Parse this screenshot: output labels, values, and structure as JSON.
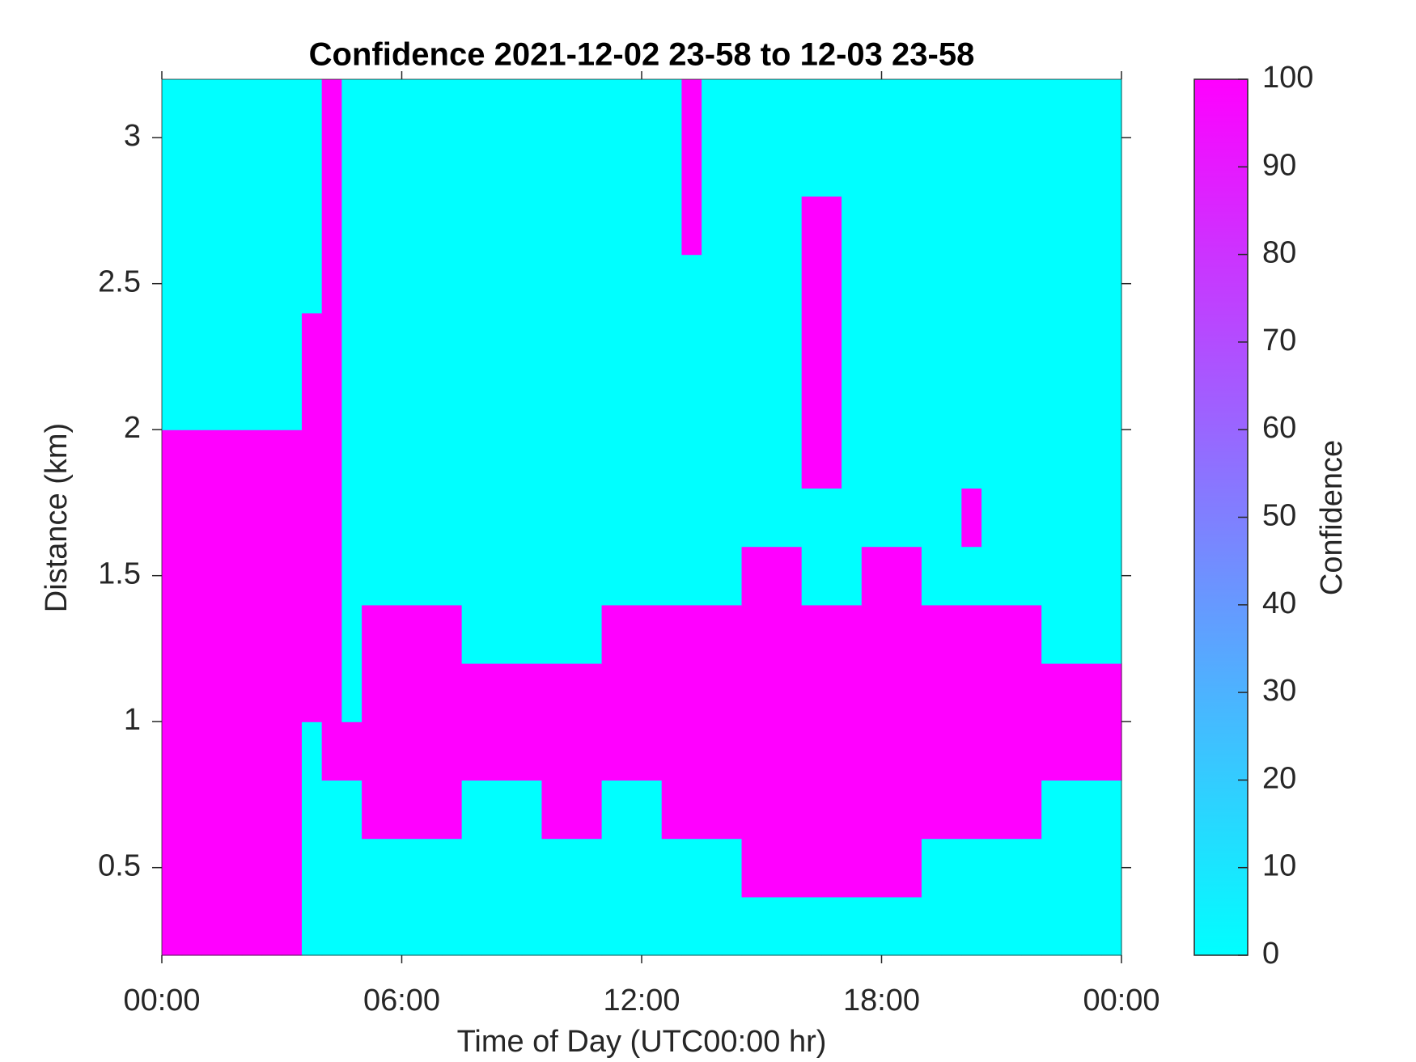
{
  "chart_data": {
    "type": "heatmap",
    "title": "Confidence 2021-12-02 23-58 to 12-03 23-58",
    "xlabel": "Time of Day (UTC00:00 hr)",
    "ylabel": "Distance (km)",
    "colorbar_label": "Confidence",
    "colormap": [
      "#00ffff",
      "#ff00ff"
    ],
    "clim": [
      0,
      100
    ],
    "cticks": [
      0,
      10,
      20,
      30,
      40,
      50,
      60,
      70,
      80,
      90,
      100
    ],
    "xlim": [
      0,
      24
    ],
    "xticks": [
      {
        "value": 0,
        "label": "00:00"
      },
      {
        "value": 6,
        "label": "06:00"
      },
      {
        "value": 12,
        "label": "12:00"
      },
      {
        "value": 18,
        "label": "18:00"
      },
      {
        "value": 24,
        "label": "00:00"
      }
    ],
    "ylim": [
      0.2,
      3.2
    ],
    "yticks": [
      0.5,
      1,
      1.5,
      2,
      2.5,
      3
    ],
    "x": [
      0.25,
      0.75,
      1.25,
      1.75,
      2.25,
      2.75,
      3.25,
      3.75,
      4.25,
      4.75,
      5.25,
      5.75,
      6.25,
      6.75,
      7.25,
      7.75,
      8.25,
      8.75,
      9.25,
      9.75,
      10.25,
      10.75,
      11.25,
      11.75,
      12.25,
      12.75,
      13.25,
      13.75,
      14.25,
      14.75,
      15.25,
      15.75,
      16.25,
      16.75,
      17.25,
      17.75,
      18.25,
      18.75,
      19.25,
      19.75,
      20.25,
      20.75,
      21.25,
      21.75,
      22.25,
      22.75,
      23.25,
      23.75
    ],
    "y": [
      0.3,
      0.5,
      0.7,
      0.9,
      1.1,
      1.3,
      1.5,
      1.7,
      1.9,
      2.1,
      2.3,
      2.5,
      2.7,
      2.9,
      3.1
    ],
    "z": [
      [
        100,
        100,
        100,
        100,
        100,
        100,
        100,
        0,
        0,
        0,
        0,
        0,
        0,
        0,
        0,
        0,
        0,
        0,
        0,
        0,
        0,
        0,
        0,
        0,
        0,
        0,
        0,
        0,
        0,
        0,
        0,
        0,
        0,
        0,
        0,
        0,
        0,
        0,
        0,
        0,
        0,
        0,
        0,
        0,
        0,
        0,
        0,
        0
      ],
      [
        100,
        100,
        100,
        100,
        100,
        100,
        100,
        0,
        0,
        0,
        0,
        0,
        0,
        0,
        0,
        0,
        0,
        0,
        0,
        0,
        0,
        0,
        0,
        0,
        0,
        0,
        0,
        0,
        0,
        100,
        100,
        100,
        100,
        100,
        100,
        100,
        100,
        100,
        0,
        0,
        0,
        0,
        0,
        0,
        0,
        0,
        0,
        0
      ],
      [
        100,
        100,
        100,
        100,
        100,
        100,
        100,
        0,
        0,
        0,
        100,
        100,
        100,
        100,
        100,
        0,
        0,
        0,
        0,
        100,
        100,
        100,
        0,
        0,
        0,
        100,
        100,
        100,
        100,
        100,
        100,
        100,
        100,
        100,
        100,
        100,
        100,
        100,
        100,
        100,
        100,
        100,
        100,
        100,
        0,
        0,
        0,
        0
      ],
      [
        100,
        100,
        100,
        100,
        100,
        100,
        100,
        0,
        100,
        100,
        100,
        100,
        100,
        100,
        100,
        100,
        100,
        100,
        100,
        100,
        100,
        100,
        100,
        100,
        100,
        100,
        100,
        100,
        100,
        100,
        100,
        100,
        100,
        100,
        100,
        100,
        100,
        100,
        100,
        100,
        100,
        100,
        100,
        100,
        100,
        100,
        100,
        100
      ],
      [
        100,
        100,
        100,
        100,
        100,
        100,
        100,
        100,
        100,
        0,
        100,
        100,
        100,
        100,
        100,
        100,
        100,
        100,
        100,
        100,
        100,
        100,
        100,
        100,
        100,
        100,
        100,
        100,
        100,
        100,
        100,
        100,
        100,
        100,
        100,
        100,
        100,
        100,
        100,
        100,
        100,
        100,
        100,
        100,
        100,
        100,
        100,
        100
      ],
      [
        100,
        100,
        100,
        100,
        100,
        100,
        100,
        100,
        100,
        0,
        100,
        100,
        100,
        100,
        100,
        0,
        0,
        0,
        0,
        0,
        0,
        0,
        100,
        100,
        100,
        100,
        100,
        100,
        100,
        100,
        100,
        100,
        100,
        100,
        100,
        100,
        100,
        100,
        100,
        100,
        100,
        100,
        100,
        100,
        0,
        0,
        0,
        0
      ],
      [
        100,
        100,
        100,
        100,
        100,
        100,
        100,
        100,
        100,
        0,
        0,
        0,
        0,
        0,
        0,
        0,
        0,
        0,
        0,
        0,
        0,
        0,
        0,
        0,
        0,
        0,
        0,
        0,
        0,
        100,
        100,
        100,
        0,
        0,
        0,
        100,
        100,
        100,
        0,
        0,
        0,
        0,
        0,
        0,
        0,
        0,
        0,
        0
      ],
      [
        100,
        100,
        100,
        100,
        100,
        100,
        100,
        100,
        100,
        0,
        0,
        0,
        0,
        0,
        0,
        0,
        0,
        0,
        0,
        0,
        0,
        0,
        0,
        0,
        0,
        0,
        0,
        0,
        0,
        0,
        0,
        0,
        0,
        0,
        0,
        0,
        0,
        0,
        0,
        0,
        100,
        0,
        0,
        0,
        0,
        0,
        0,
        0
      ],
      [
        100,
        100,
        100,
        100,
        100,
        100,
        100,
        100,
        100,
        0,
        0,
        0,
        0,
        0,
        0,
        0,
        0,
        0,
        0,
        0,
        0,
        0,
        0,
        0,
        0,
        0,
        0,
        0,
        0,
        0,
        0,
        0,
        100,
        100,
        0,
        0,
        0,
        0,
        0,
        0,
        0,
        0,
        0,
        0,
        0,
        0,
        0,
        0
      ],
      [
        0,
        0,
        0,
        0,
        0,
        0,
        0,
        100,
        100,
        0,
        0,
        0,
        0,
        0,
        0,
        0,
        0,
        0,
        0,
        0,
        0,
        0,
        0,
        0,
        0,
        0,
        0,
        0,
        0,
        0,
        0,
        0,
        100,
        100,
        0,
        0,
        0,
        0,
        0,
        0,
        0,
        0,
        0,
        0,
        0,
        0,
        0,
        0
      ],
      [
        0,
        0,
        0,
        0,
        0,
        0,
        0,
        100,
        100,
        0,
        0,
        0,
        0,
        0,
        0,
        0,
        0,
        0,
        0,
        0,
        0,
        0,
        0,
        0,
        0,
        0,
        0,
        0,
        0,
        0,
        0,
        0,
        100,
        100,
        0,
        0,
        0,
        0,
        0,
        0,
        0,
        0,
        0,
        0,
        0,
        0,
        0,
        0
      ],
      [
        0,
        0,
        0,
        0,
        0,
        0,
        0,
        0,
        100,
        0,
        0,
        0,
        0,
        0,
        0,
        0,
        0,
        0,
        0,
        0,
        0,
        0,
        0,
        0,
        0,
        0,
        0,
        0,
        0,
        0,
        0,
        0,
        100,
        100,
        0,
        0,
        0,
        0,
        0,
        0,
        0,
        0,
        0,
        0,
        0,
        0,
        0,
        0
      ],
      [
        0,
        0,
        0,
        0,
        0,
        0,
        0,
        0,
        100,
        0,
        0,
        0,
        0,
        0,
        0,
        0,
        0,
        0,
        0,
        0,
        0,
        0,
        0,
        0,
        0,
        0,
        100,
        0,
        0,
        0,
        0,
        0,
        100,
        100,
        0,
        0,
        0,
        0,
        0,
        0,
        0,
        0,
        0,
        0,
        0,
        0,
        0,
        0
      ],
      [
        0,
        0,
        0,
        0,
        0,
        0,
        0,
        0,
        100,
        0,
        0,
        0,
        0,
        0,
        0,
        0,
        0,
        0,
        0,
        0,
        0,
        0,
        0,
        0,
        0,
        0,
        100,
        0,
        0,
        0,
        0,
        0,
        0,
        0,
        0,
        0,
        0,
        0,
        0,
        0,
        0,
        0,
        0,
        0,
        0,
        0,
        0,
        0
      ],
      [
        0,
        0,
        0,
        0,
        0,
        0,
        0,
        0,
        100,
        0,
        0,
        0,
        0,
        0,
        0,
        0,
        0,
        0,
        0,
        0,
        0,
        0,
        0,
        0,
        0,
        0,
        100,
        0,
        0,
        0,
        0,
        0,
        0,
        0,
        0,
        0,
        0,
        0,
        0,
        0,
        0,
        0,
        0,
        0,
        0,
        0,
        0,
        0
      ]
    ]
  }
}
